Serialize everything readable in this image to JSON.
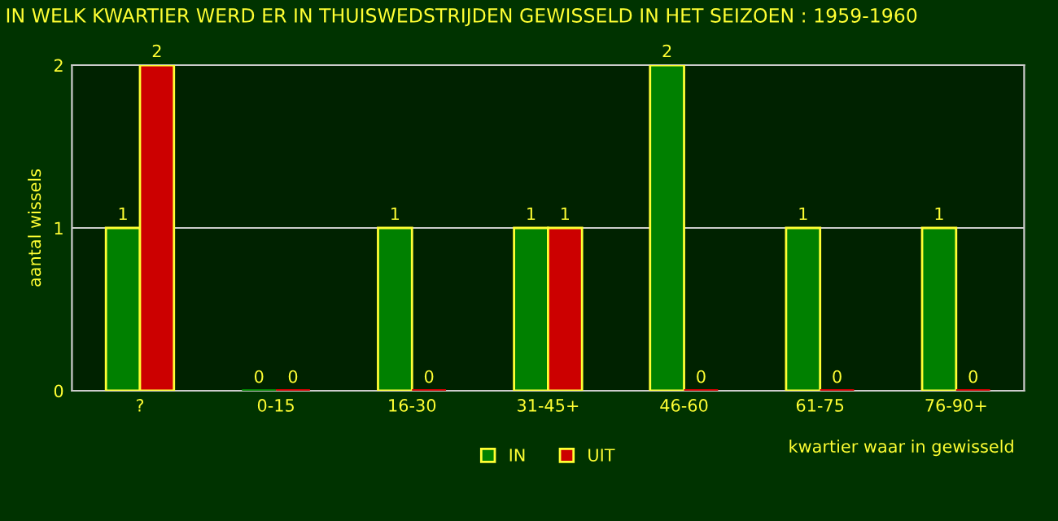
{
  "chart_data": {
    "type": "bar",
    "title": "IN WELK KWARTIER WERD ER IN THUISWEDSTRIJDEN GEWISSELD IN HET SEIZOEN : 1959-1960",
    "xlabel": "kwartier waar in gewisseld",
    "ylabel": "aantal wissels",
    "categories": [
      "?",
      "0-15",
      "16-30",
      "31-45+",
      "46-60",
      "61-75",
      "76-90+"
    ],
    "series": [
      {
        "name": "IN",
        "color": "#008000",
        "values": [
          1,
          0,
          1,
          1,
          2,
          1,
          1
        ]
      },
      {
        "name": "UIT",
        "color": "#cc0000",
        "values": [
          2,
          0,
          0,
          1,
          0,
          0,
          0
        ]
      }
    ],
    "ylim": [
      0,
      2
    ],
    "yticks": [
      0,
      1,
      2
    ],
    "grid": "y",
    "legend": "bottom",
    "data_labels": true
  }
}
